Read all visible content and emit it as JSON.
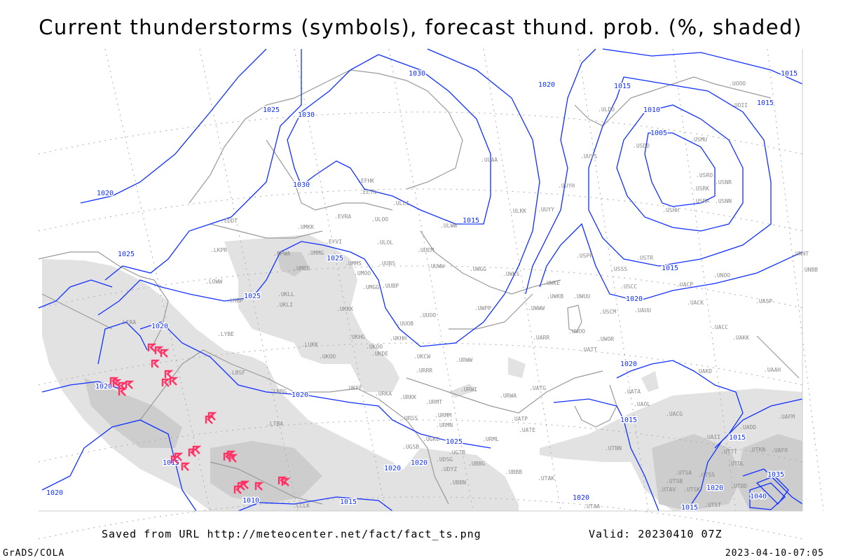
{
  "title": "Current thunderstorms (symbols), forecast thund. prob. (%, shaded)",
  "footer": {
    "saved_from": "Saved from URL http://meteocenter.net/fact/fact_ts.png",
    "valid": "Valid: 20230410 07Z",
    "software": "GrADS/COLA",
    "generated": "2023-04-10-07:05"
  },
  "colors": {
    "isobar": "#1030ff",
    "coastline": "#9a9a9a",
    "shading_light": "#e2e2e2",
    "shading_dark": "#cdcdcd",
    "thunderstorm_symbol": "#ff3366"
  },
  "icons": {
    "thunderstorm_symbol": "thunderstorm-flag-icon"
  },
  "isobar_labels": [
    "1030",
    "1025",
    "1030",
    "1020",
    "1030",
    "1025",
    "1025",
    "1025",
    "1020",
    "1020",
    "1020",
    "1015",
    "1015",
    "1010",
    "1015",
    "1020",
    "1015",
    "1010",
    "1005",
    "1015",
    "1015",
    "1020",
    "1020",
    "1025",
    "1020",
    "1020",
    "1015",
    "1020",
    "1015",
    "1020",
    "1015",
    "1035",
    "1040",
    "1020",
    "1015"
  ],
  "stations": [
    "UOOO",
    "UOII",
    "ULDD",
    "USDD",
    "USMU",
    "UUYS",
    "ULAA",
    "EFHK",
    "EETN",
    "ULLI",
    "USRO",
    "USRK",
    "USNR",
    "USRR",
    "USNN",
    "USHH",
    "UUYH",
    "ULKK",
    "UUYY",
    "ULWW",
    "EVRA",
    "ULOO",
    "EDDT",
    "UMKK",
    "ULOL",
    "UUEM",
    "EPWA",
    "EYVI",
    "UMMG",
    "LKPR",
    "UMMS",
    "UMOO",
    "UUBS",
    "UMBB",
    "UUWW",
    "UWGG",
    "UWKS",
    "UWKE",
    "USPP",
    "USSS",
    "UNOO",
    "USTR",
    "UNNT",
    "UNBB",
    "LOWW",
    "UMGG",
    "UUBP",
    "UKLL",
    "UWKB",
    "UWUU",
    "UWWW",
    "USCC",
    "UACP",
    "UKLI",
    "LHBP",
    "UKKK",
    "UWPP",
    "UACK",
    "UASP",
    "USCM",
    "UAUU",
    "UUOO",
    "UUOB",
    "LIRA",
    "UWOO",
    "UWOR",
    "UACC",
    "UAKK",
    "LYBE",
    "UKHH",
    "UKOO",
    "UKHG",
    "LUKK",
    "UKDE",
    "UARR",
    "UATT",
    "URWW",
    "UKCW",
    "UKOO",
    "URRR",
    "UAKD",
    "UAAH",
    "LBSF",
    "URWI",
    "UKFF",
    "URKA",
    "URKK",
    "UATG",
    "URWA",
    "URMT",
    "UATA",
    "UAOL",
    "LBBG",
    "URSS",
    "URMM",
    "UACG",
    "UAFM",
    "URMN",
    "UATP",
    "UATE",
    "LTBA",
    "URML",
    "UGKO",
    "UGSB",
    "UGTB",
    "UDSG",
    "UBBG",
    "UDYZ",
    "UBBB",
    "UBBN",
    "UTAK",
    "UTNN",
    "UAII",
    "UADD",
    "UTTT",
    "UTKN",
    "UAFO",
    "UTDL",
    "UTSA",
    "UTSS",
    "UTSB",
    "UTAV",
    "UTSK",
    "UTDD",
    "UTST",
    "UTAA",
    "LCLK"
  ]
}
